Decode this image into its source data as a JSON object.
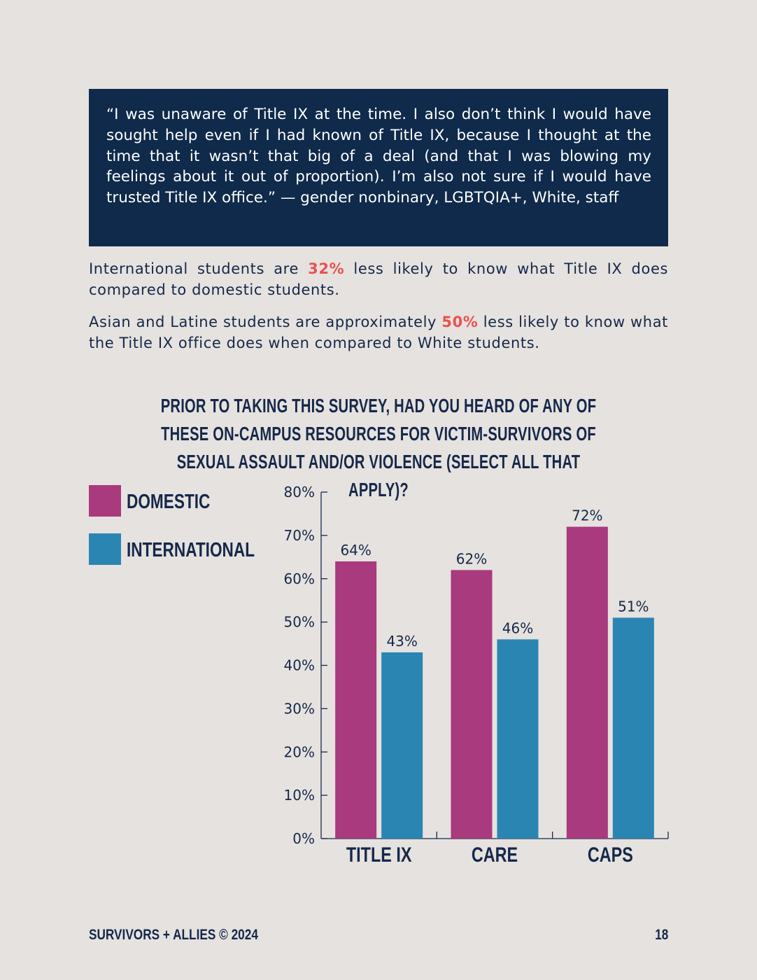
{
  "quote": {
    "text": "“I was unaware of Title IX at the time. I also don’t think I would have sought help even if I had known of Title IX, because I thought at the time that it wasn’t that big of a deal (and that I was blowing my feelings about it out of proportion). I’m also not sure if I would have trusted Title IX office.” — gender nonbinary, LGBTQIA+, White, staff"
  },
  "paragraphs": [
    {
      "before": "International students are ",
      "highlight": "32%",
      "after": " less likely to know what Title IX does compared to domestic students."
    },
    {
      "before": "Asian and Latine students are approximately ",
      "highlight": "50%",
      "after": " less likely to know what the Title IX office does when compared to White students."
    }
  ],
  "colors": {
    "accent_highlight": "#e8524f",
    "quote_background": "#0f2a4a",
    "domestic": "#a83a7d",
    "international": "#2a85b3"
  },
  "chart_data": {
    "type": "bar",
    "title": "PRIOR TO TAKING THIS SURVEY, HAD YOU HEARD OF ANY OF THESE ON-CAMPUS RESOURCES FOR VICTIM-SURVIVORS OF SEXUAL ASSAULT AND/OR VIOLENCE (SELECT ALL THAT APPLY)?",
    "categories": [
      "TITLE IX",
      "CARE",
      "CAPS"
    ],
    "series": [
      {
        "name": "DOMESTIC",
        "values": [
          64,
          62,
          72
        ],
        "labels": [
          "64%",
          "62%",
          "72%"
        ],
        "color": "#a83a7d"
      },
      {
        "name": "INTERNATIONAL",
        "values": [
          43,
          46,
          51
        ],
        "labels": [
          "43%",
          "46%",
          "51%"
        ],
        "color": "#2a85b3"
      }
    ],
    "ylim": [
      0,
      80
    ],
    "yticks": [
      "0%",
      "10%",
      "20%",
      "30%",
      "40%",
      "50%",
      "60%",
      "70%",
      "80%"
    ],
    "legend": "left",
    "grid": false
  },
  "footer": {
    "left": "SURVIVORS + ALLIES © 2024",
    "page_number": "18"
  }
}
